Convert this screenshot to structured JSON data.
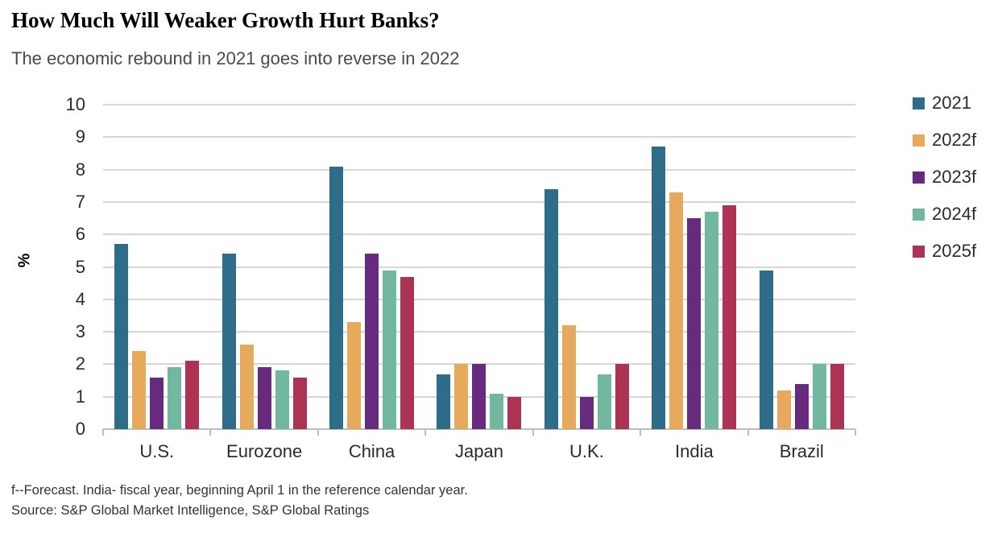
{
  "header": {
    "title": "How Much Will Weaker Growth Hurt Banks?",
    "subtitle": "The economic rebound in 2021 goes into reverse in 2022"
  },
  "chart_data": {
    "type": "bar",
    "title": "How Much Will Weaker Growth Hurt Banks?",
    "subtitle": "The economic rebound in 2021 goes into reverse in 2022",
    "categories": [
      "U.S.",
      "Eurozone",
      "China",
      "Japan",
      "U.K.",
      "India",
      "Brazil"
    ],
    "series": [
      {
        "name": "2021",
        "color": "#2e6d8a",
        "values": [
          5.7,
          5.4,
          8.1,
          1.7,
          7.4,
          8.7,
          4.9
        ]
      },
      {
        "name": "2022f",
        "color": "#e7a95c",
        "values": [
          2.4,
          2.6,
          3.3,
          2.0,
          3.2,
          7.3,
          1.2
        ]
      },
      {
        "name": "2023f",
        "color": "#662a7e",
        "values": [
          1.6,
          1.9,
          5.4,
          2.0,
          1.0,
          6.5,
          1.4
        ]
      },
      {
        "name": "2024f",
        "color": "#72b8a1",
        "values": [
          1.9,
          1.8,
          4.9,
          1.1,
          1.7,
          6.7,
          2.0
        ]
      },
      {
        "name": "2025f",
        "color": "#ad3355",
        "values": [
          2.1,
          1.6,
          4.7,
          1.0,
          2.0,
          6.9,
          2.0
        ]
      }
    ],
    "ylabel": "%",
    "ylim": [
      0,
      10
    ],
    "ytick_step": 1,
    "grid": true,
    "legend_position": "right"
  },
  "footer": {
    "note": "f--Forecast. India- fiscal year, beginning April 1 in the reference calendar year.",
    "source": "Source: S&P Global Market Intelligence, S&P Global Ratings"
  }
}
